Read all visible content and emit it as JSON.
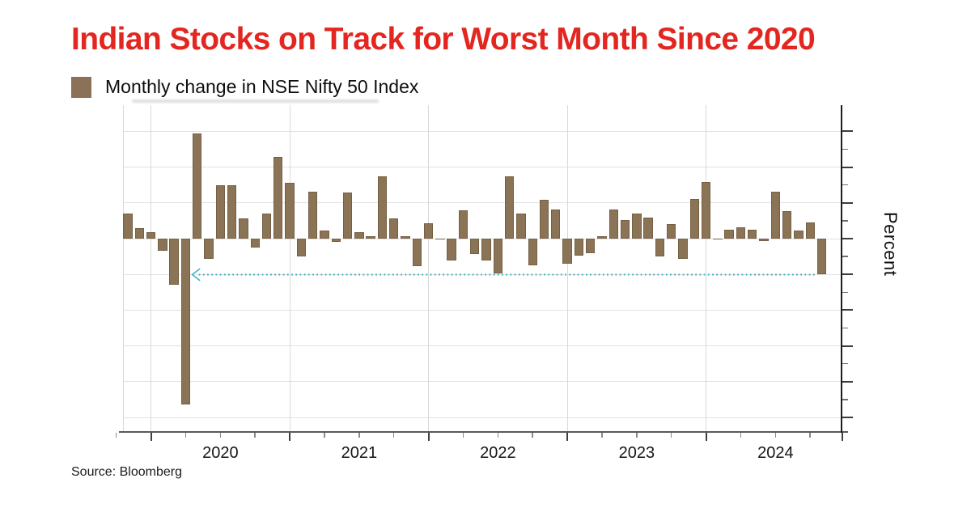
{
  "title": {
    "text": "Indian Stocks on Track for Worst Month Since 2020",
    "color": "#e3261f"
  },
  "legend": {
    "label": "Monthly change in NSE Nifty 50 Index",
    "swatch_color": "#8a7158"
  },
  "source": {
    "text": "Source: Bloomberg"
  },
  "style": {
    "grid_color": "#e2e2e2",
    "year_grid_color": "#d9d9d9",
    "axis_color": "#58595b",
    "spine_color": "#1c1c1c",
    "text_color": "#111111"
  },
  "chart_data": {
    "type": "bar",
    "title": "Indian Stocks on Track for Worst Month Since 2020",
    "series_name": "Monthly change in NSE Nifty 50 Index",
    "ylabel": "Percent",
    "xlabel": "",
    "grid": true,
    "legend_position": "top-left",
    "ylim": [
      -27,
      18.7
    ],
    "y_major_gridlines": [
      15,
      10,
      5,
      0,
      -5,
      -10,
      -15,
      -20,
      -25
    ],
    "y_minor_ticks": [
      12.5,
      7.5,
      2.5,
      -2.5,
      -7.5,
      -12.5,
      -17.5,
      -22.5
    ],
    "x_year_labels": [
      "2020",
      "2021",
      "2022",
      "2023",
      "2024"
    ],
    "bar_color": "#8b7355",
    "x": [
      "2019-10",
      "2019-11",
      "2019-12",
      "2020-01",
      "2020-02",
      "2020-03",
      "2020-04",
      "2020-05",
      "2020-06",
      "2020-07",
      "2020-08",
      "2020-09",
      "2020-10",
      "2020-11",
      "2020-12",
      "2021-01",
      "2021-02",
      "2021-03",
      "2021-04",
      "2021-05",
      "2021-06",
      "2021-07",
      "2021-08",
      "2021-09",
      "2021-10",
      "2021-11",
      "2021-12",
      "2022-01",
      "2022-02",
      "2022-03",
      "2022-04",
      "2022-05",
      "2022-06",
      "2022-07",
      "2022-08",
      "2022-09",
      "2022-10",
      "2022-11",
      "2022-12",
      "2023-01",
      "2023-02",
      "2023-03",
      "2023-04",
      "2023-05",
      "2023-06",
      "2023-07",
      "2023-08",
      "2023-09",
      "2023-10",
      "2023-11",
      "2023-12",
      "2024-01",
      "2024-02",
      "2024-03",
      "2024-04",
      "2024-05",
      "2024-06",
      "2024-07",
      "2024-08",
      "2024-09",
      "2024-10"
    ],
    "values": [
      3.5,
      1.5,
      0.9,
      -1.7,
      -6.4,
      -23.2,
      14.7,
      -2.8,
      7.5,
      7.5,
      2.8,
      -1.2,
      3.5,
      11.4,
      7.8,
      -2.5,
      6.6,
      1.1,
      -0.4,
      6.5,
      0.9,
      0.3,
      8.7,
      2.8,
      0.3,
      -3.9,
      2.2,
      -0.1,
      -3.1,
      4.0,
      -2.1,
      -3.0,
      -4.9,
      8.7,
      3.5,
      -3.7,
      5.4,
      4.1,
      -3.5,
      -2.4,
      -2.0,
      0.3,
      4.1,
      2.6,
      3.5,
      2.9,
      -2.5,
      2.0,
      -2.8,
      5.5,
      7.9,
      -0.1,
      1.2,
      1.6,
      1.2,
      -0.3,
      6.6,
      3.9,
      1.1,
      2.3,
      -5.0
    ],
    "annotation": {
      "shape": "dotted-line-arrow-left",
      "y": -5,
      "x_start": "2020-03",
      "x_end": "2024-10",
      "color": "#45b6ca"
    }
  }
}
